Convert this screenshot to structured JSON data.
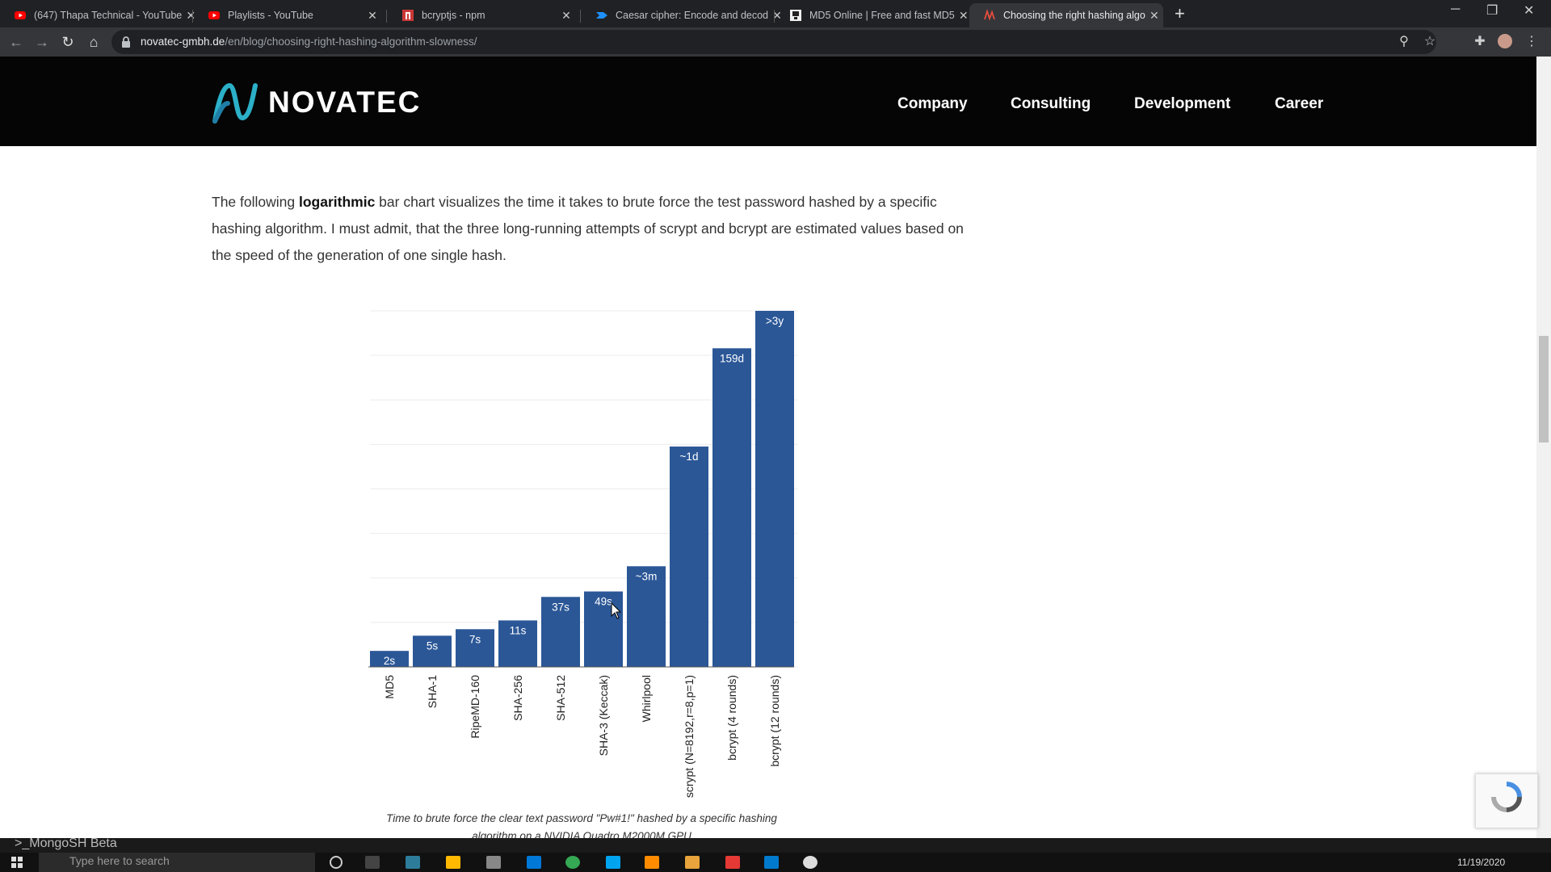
{
  "browser": {
    "tabs": [
      {
        "title": "(647) Thapa Technical - YouTube",
        "icon": "youtube-icon",
        "active": false
      },
      {
        "title": "Playlists - YouTube",
        "icon": "youtube-icon",
        "active": false
      },
      {
        "title": "bcryptjs - npm",
        "icon": "npm-icon",
        "active": false
      },
      {
        "title": "Caesar cipher: Encode and decod",
        "icon": "cryptii-icon",
        "active": false
      },
      {
        "title": "MD5 Online | Free and fast MD5",
        "icon": "md5-icon",
        "active": false
      },
      {
        "title": "Choosing the right hashing algo",
        "icon": "novatec-icon",
        "active": true
      }
    ],
    "close_glyph": "✕",
    "new_tab_glyph": "+",
    "url_domain": "novatec-gmbh.de",
    "url_path": "/en/blog/choosing-right-hashing-algorithm-slowness/"
  },
  "site": {
    "logo_text": "NOVATEC",
    "nav": [
      "Company",
      "Consulting",
      "Development",
      "Career"
    ]
  },
  "article": {
    "para_pre": "The following ",
    "para_bold": "logarithmic",
    "para_post": " bar chart visualizes the time it takes to brute force the test password hashed by a specific hashing algorithm. I must admit, that the three long-running attempts of scrypt and bcrypt are estimated values based on the speed of the generation of one single hash.",
    "caption": "Time to brute force the clear text password \"Pw#1!\" hashed by a specific hashing",
    "caption2": "algorithm on a NVIDIA Quadro M2000M GPU"
  },
  "chart_data": {
    "type": "bar",
    "log_scale": true,
    "categories": [
      "MD5",
      "SHA-1",
      "RipeMD-160",
      "SHA-256",
      "SHA-512",
      "SHA-3 (Keccak)",
      "Whirlpool",
      "scrypt (N=8192,r=8,p=1)",
      "bcrypt (4 rounds)",
      "bcrypt (12 rounds)"
    ],
    "values_seconds": [
      2,
      5,
      7,
      11,
      37,
      49,
      180,
      86400,
      13737600,
      94608000
    ],
    "data_labels": [
      "2s",
      "5s",
      "7s",
      "11s",
      "37s",
      "49s",
      "~3m",
      "~1d",
      "159d",
      ">3y"
    ],
    "bar_color": "#2b5797",
    "grid": true
  },
  "taskbar": {
    "mongosh_label": ">_MongoSH Beta",
    "search_placeholder": "Type here to search",
    "date": "11/19/2020"
  },
  "colors": {
    "header_bg": "#050505",
    "logo_accent": "#2bb0c8",
    "chrome_dark": "#202124"
  }
}
